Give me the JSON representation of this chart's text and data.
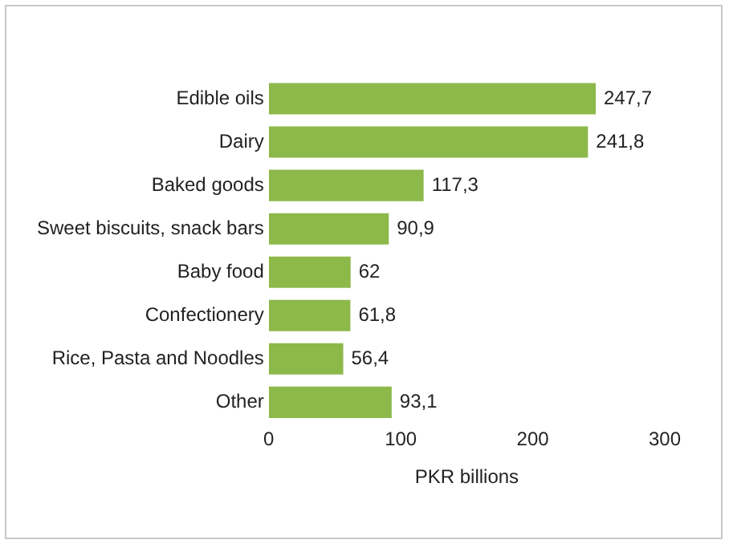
{
  "chart_data": {
    "type": "bar",
    "orientation": "horizontal",
    "categories": [
      "Edible oils",
      "Dairy",
      "Baked goods",
      "Sweet biscuits, snack bars",
      "Baby food",
      "Confectionery",
      "Rice, Pasta and Noodles",
      "Other"
    ],
    "values": [
      247.7,
      241.8,
      117.3,
      90.9,
      62,
      61.8,
      56.4,
      93.1
    ],
    "value_labels": [
      "247,7",
      "241,8",
      "117,3",
      "90,9",
      "62",
      "61,8",
      "56,4",
      "93,1"
    ],
    "color": "#8db94a",
    "xlim": [
      0,
      300
    ],
    "xticks": [
      0,
      100,
      200,
      300
    ],
    "xlabel": "PKR billions",
    "grid": false,
    "legend": false
  }
}
